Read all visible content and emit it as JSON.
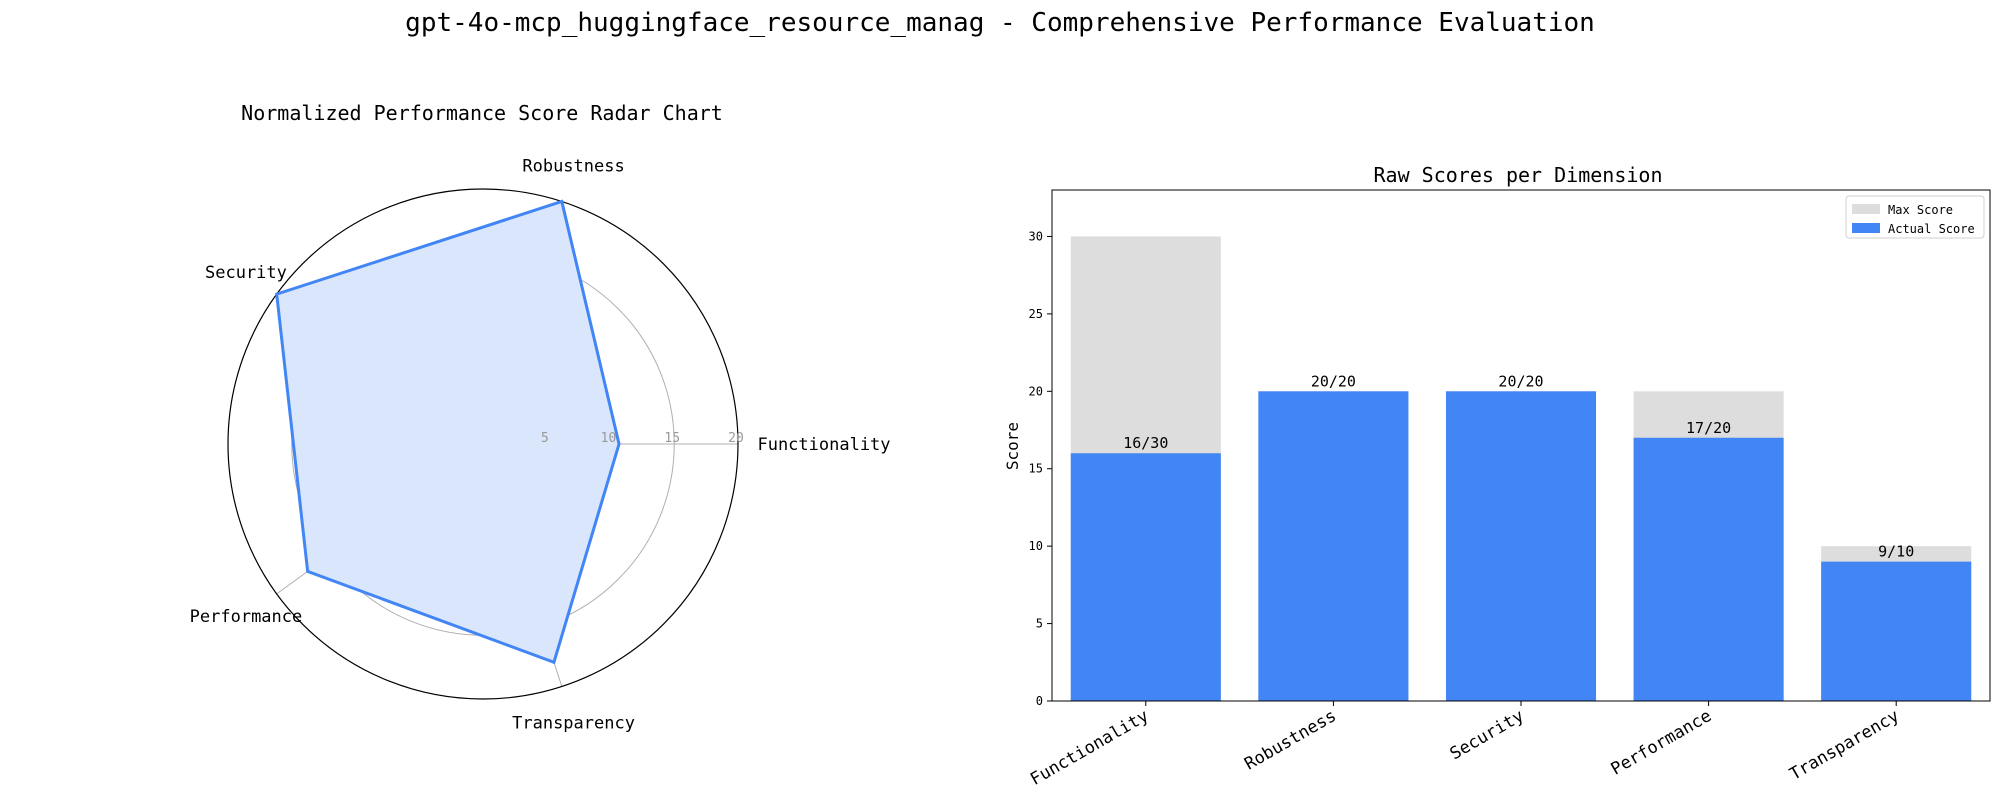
{
  "figure_title": "gpt-4o-mcp_huggingface_resource_manag - Comprehensive Performance Evaluation",
  "colors": {
    "actual": "#4285f4",
    "max": "#dddddd",
    "radar_fill": "#dae6fb",
    "grid": "#b0b0b0"
  },
  "chart_data": [
    {
      "type": "radar",
      "title": "Normalized Performance Score Radar Chart",
      "categories": [
        "Functionality",
        "Robustness",
        "Security",
        "Performance",
        "Transparency"
      ],
      "values": [
        10.67,
        20,
        20,
        17,
        18
      ],
      "rmax": 20,
      "radial_ticks": [
        5,
        10,
        15,
        20
      ],
      "grid": true
    },
    {
      "type": "bar",
      "title": "Raw Scores per Dimension",
      "ylabel": "Score",
      "categories": [
        "Functionality",
        "Robustness",
        "Security",
        "Performance",
        "Transparency"
      ],
      "series": [
        {
          "name": "Max Score",
          "values": [
            30,
            20,
            20,
            20,
            10
          ]
        },
        {
          "name": "Actual Score",
          "values": [
            16,
            20,
            20,
            17,
            9
          ]
        }
      ],
      "bar_labels": [
        "16/30",
        "20/20",
        "20/20",
        "17/20",
        "9/10"
      ],
      "ylim": [
        0,
        33
      ],
      "yticks": [
        0,
        5,
        10,
        15,
        20,
        25,
        30
      ],
      "legend_position": "top-right",
      "grid": false
    }
  ]
}
